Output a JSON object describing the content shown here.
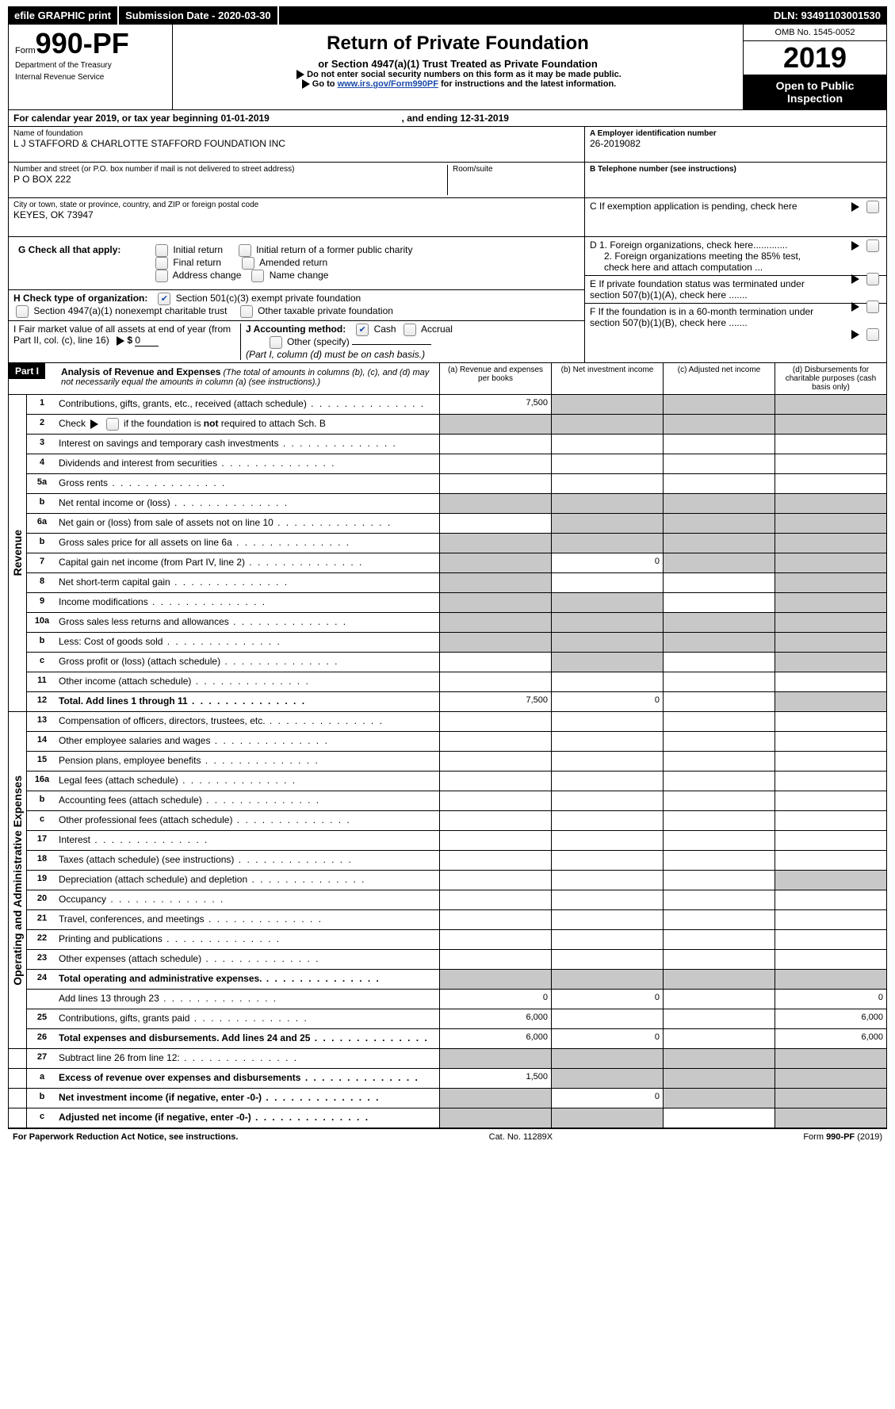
{
  "topbar": {
    "efile": "efile GRAPHIC print",
    "sub_date_lbl": "Submission Date - ",
    "sub_date": "2020-03-30",
    "dln_lbl": "DLN: ",
    "dln": "93491103001530"
  },
  "header": {
    "form_prefix": "Form",
    "form_no": "990-PF",
    "dept1": "Department of the Treasury",
    "dept2": "Internal Revenue Service",
    "title": "Return of Private Foundation",
    "subtitle": "or Section 4947(a)(1) Trust Treated as Private Foundation",
    "warn": "Do not enter social security numbers on this form as it may be made public.",
    "goto_pre": "Go to ",
    "goto_link": "www.irs.gov/Form990PF",
    "goto_post": " for instructions and the latest information.",
    "omb": "OMB No. 1545-0052",
    "year": "2019",
    "open1": "Open to Public",
    "open2": "Inspection"
  },
  "cal": {
    "pre": "For calendar year 2019, or tax year beginning ",
    "begin": "01-01-2019",
    "mid": ", and ending ",
    "end": "12-31-2019"
  },
  "id": {
    "name_lbl": "Name of foundation",
    "name": "L J STAFFORD & CHARLOTTE STAFFORD FOUNDATION INC",
    "addr_lbl": "Number and street (or P.O. box number if mail is not delivered to street address)",
    "addr": "P O BOX 222",
    "room_lbl": "Room/suite",
    "city_lbl": "City or town, state or province, country, and ZIP or foreign postal code",
    "city": "KEYES, OK  73947",
    "A_lbl": "A Employer identification number",
    "A": "26-2019082",
    "B_lbl": "B Telephone number (see instructions)",
    "C_lbl": "C  If exemption application is pending, check here",
    "D1": "D 1. Foreign organizations, check here.............",
    "D2": "2. Foreign organizations meeting the 85% test, check here and attach computation ...",
    "E": "E   If private foundation status was terminated under section 507(b)(1)(A), check here .......",
    "F": "F   If the foundation is in a 60-month termination under section 507(b)(1)(B), check here ......."
  },
  "G": {
    "lbl": "G Check all that apply:",
    "o1": "Initial return",
    "o2": "Initial return of a former public charity",
    "o3": "Final return",
    "o4": "Amended return",
    "o5": "Address change",
    "o6": "Name change"
  },
  "H": {
    "lbl": "H Check type of organization:",
    "o1": "Section 501(c)(3) exempt private foundation",
    "o2": "Section 4947(a)(1) nonexempt charitable trust",
    "o3": "Other taxable private foundation"
  },
  "I": {
    "lbl": "I Fair market value of all assets at end of year (from Part II, col. (c), line 16)",
    "val": "0"
  },
  "J": {
    "lbl": "J Accounting method:",
    "o1": "Cash",
    "o2": "Accrual",
    "o3": "Other (specify)",
    "note": "(Part I, column (d) must be on cash basis.)"
  },
  "part1": {
    "lbl": "Part I",
    "title": "Analysis of Revenue and Expenses",
    "note": "(The total of amounts in columns (b), (c), and (d) may not necessarily equal the amounts in column (a) (see instructions).)",
    "cols": {
      "a": "(a)    Revenue and expenses per books",
      "b": "(b)    Net investment income",
      "c": "(c)    Adjusted net income",
      "d": "(d)    Disbursements for charitable purposes (cash basis only)"
    }
  },
  "side": {
    "rev": "Revenue",
    "exp": "Operating and Administrative Expenses"
  },
  "rows": {
    "1": {
      "d": "Contributions, gifts, grants, etc., received (attach schedule)",
      "a": "7,500"
    },
    "2": {
      "d": "Check ▶   if the foundation is not required to attach Sch. B"
    },
    "3": {
      "d": "Interest on savings and temporary cash investments"
    },
    "4": {
      "d": "Dividends and interest from securities"
    },
    "5a": {
      "d": "Gross rents"
    },
    "5b": {
      "d": "Net rental income or (loss)"
    },
    "6a": {
      "d": "Net gain or (loss) from sale of assets not on line 10"
    },
    "6b": {
      "d": "Gross sales price for all assets on line 6a"
    },
    "7": {
      "d": "Capital gain net income (from Part IV, line 2)",
      "b": "0"
    },
    "8": {
      "d": "Net short-term capital gain"
    },
    "9": {
      "d": "Income modifications"
    },
    "10a": {
      "d": "Gross sales less returns and allowances"
    },
    "10b": {
      "d": "Less: Cost of goods sold"
    },
    "10c": {
      "d": "Gross profit or (loss) (attach schedule)"
    },
    "11": {
      "d": "Other income (attach schedule)"
    },
    "12": {
      "d": "Total. Add lines 1 through 11",
      "a": "7,500",
      "b": "0"
    },
    "13": {
      "d": "Compensation of officers, directors, trustees, etc."
    },
    "14": {
      "d": "Other employee salaries and wages"
    },
    "15": {
      "d": "Pension plans, employee benefits"
    },
    "16a": {
      "d": "Legal fees (attach schedule)"
    },
    "16b": {
      "d": "Accounting fees (attach schedule)"
    },
    "16c": {
      "d": "Other professional fees (attach schedule)"
    },
    "17": {
      "d": "Interest"
    },
    "18": {
      "d": "Taxes (attach schedule) (see instructions)"
    },
    "19": {
      "d": "Depreciation (attach schedule) and depletion"
    },
    "20": {
      "d": "Occupancy"
    },
    "21": {
      "d": "Travel, conferences, and meetings"
    },
    "22": {
      "d": "Printing and publications"
    },
    "23": {
      "d": "Other expenses (attach schedule)"
    },
    "24": {
      "d": "Total operating and administrative expenses."
    },
    "24s": {
      "d": "Add lines 13 through 23",
      "a": "0",
      "b": "0",
      "dd": "0"
    },
    "25": {
      "d": "Contributions, gifts, grants paid",
      "a": "6,000",
      "dd": "6,000"
    },
    "26": {
      "d": "Total expenses and disbursements. Add lines 24 and 25",
      "a": "6,000",
      "b": "0",
      "dd": "6,000"
    },
    "27": {
      "d": "Subtract line 26 from line 12:"
    },
    "27a": {
      "d": "Excess of revenue over expenses and disbursements",
      "a": "1,500"
    },
    "27b": {
      "d": "Net investment income (if negative, enter -0-)",
      "b": "0"
    },
    "27c": {
      "d": "Adjusted net income (if negative, enter -0-)"
    }
  },
  "footer": {
    "left": "For Paperwork Reduction Act Notice, see instructions.",
    "mid": "Cat. No. 11289X",
    "right": "Form 990-PF (2019)"
  }
}
